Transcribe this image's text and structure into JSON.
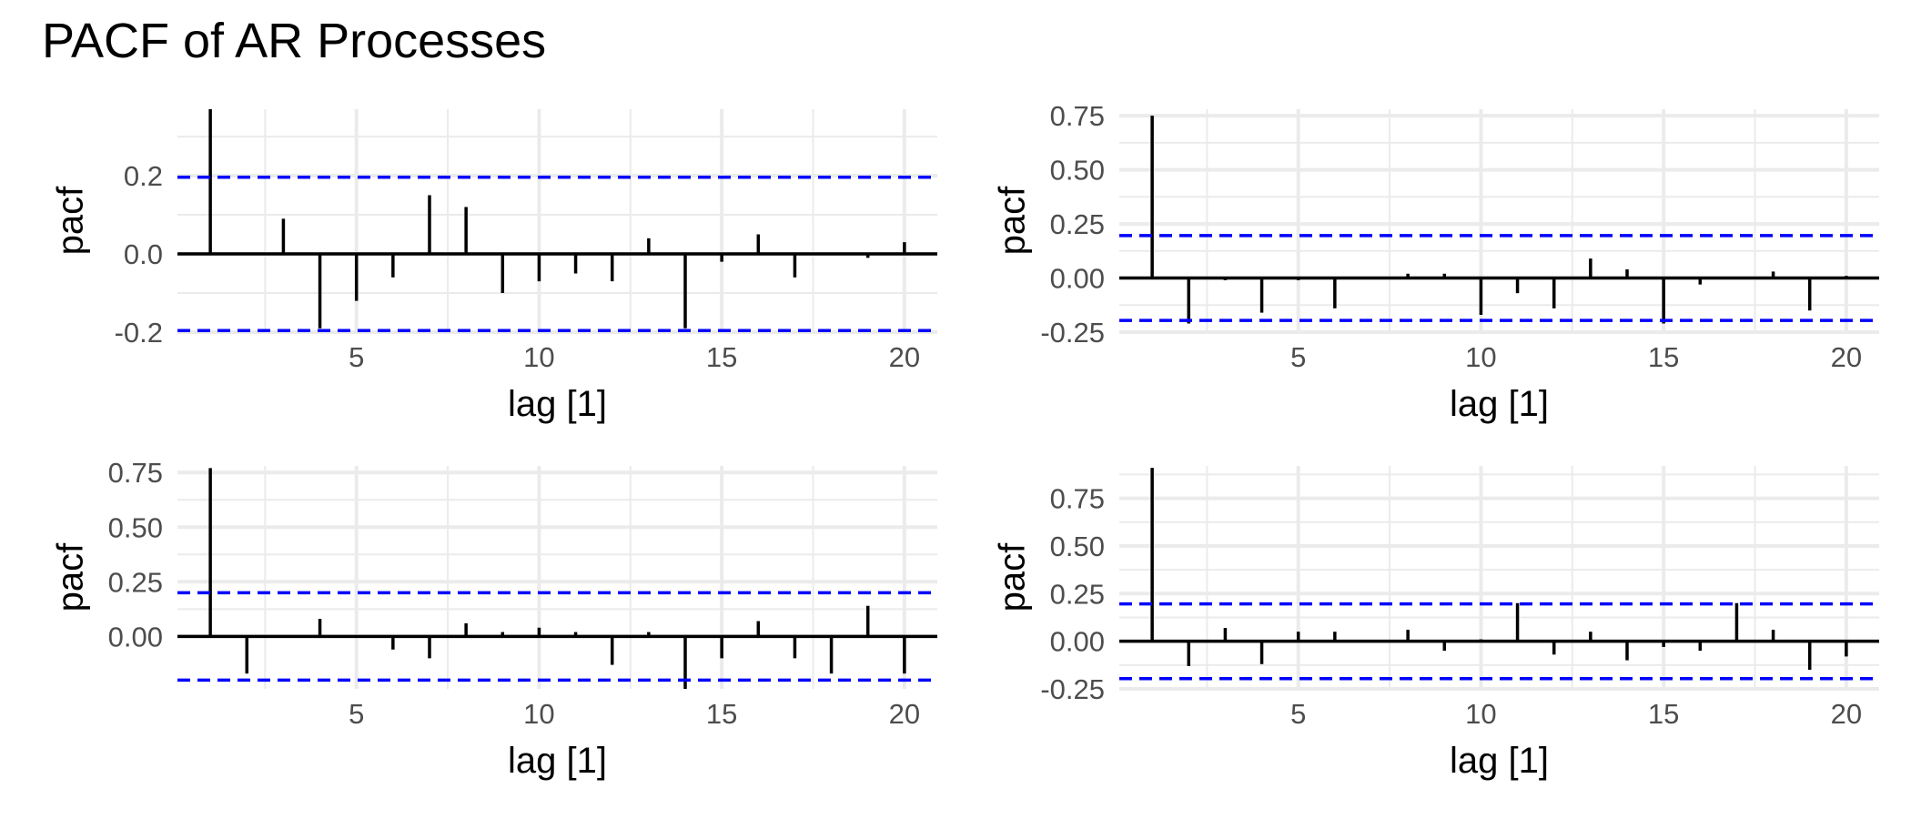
{
  "title": "PACF of AR Processes",
  "colors": {
    "bar": "#000000",
    "ci": "#0000ff",
    "grid": "#ebebeb"
  },
  "chart_data": [
    {
      "type": "bar",
      "panel": "top-left",
      "xlabel": "lag [1]",
      "ylabel": "pacf",
      "xticks": [
        "5",
        "10",
        "15",
        "20"
      ],
      "yticks": [
        "-0.2",
        "0.0",
        "0.2"
      ],
      "ytick_values": [
        -0.2,
        0.0,
        0.2
      ],
      "ylim": [
        -0.2,
        0.37
      ],
      "xlim": [
        0.1,
        20.9
      ],
      "ci": 0.196,
      "lags": [
        1,
        2,
        3,
        4,
        5,
        6,
        7,
        8,
        9,
        10,
        11,
        12,
        13,
        14,
        15,
        16,
        17,
        18,
        19,
        20
      ],
      "values": [
        0.37,
        0.0,
        0.09,
        -0.19,
        -0.12,
        -0.06,
        0.15,
        0.12,
        -0.1,
        -0.07,
        -0.05,
        -0.07,
        0.04,
        -0.19,
        -0.02,
        0.05,
        -0.06,
        0.0,
        -0.01,
        0.03
      ]
    },
    {
      "type": "bar",
      "panel": "top-right",
      "xlabel": "lag [1]",
      "ylabel": "pacf",
      "xticks": [
        "5",
        "10",
        "15",
        "20"
      ],
      "yticks": [
        "-0.25",
        "0.00",
        "0.25",
        "0.50",
        "0.75"
      ],
      "ytick_values": [
        -0.25,
        0.0,
        0.25,
        0.5,
        0.75
      ],
      "ylim": [
        -0.25,
        0.78
      ],
      "xlim": [
        0.1,
        20.9
      ],
      "ci": 0.196,
      "lags": [
        1,
        2,
        3,
        4,
        5,
        6,
        7,
        8,
        9,
        10,
        11,
        12,
        13,
        14,
        15,
        16,
        17,
        18,
        19,
        20
      ],
      "values": [
        0.75,
        -0.21,
        -0.01,
        -0.16,
        -0.01,
        -0.14,
        0.0,
        0.02,
        0.02,
        -0.17,
        -0.07,
        -0.14,
        0.09,
        0.04,
        -0.21,
        -0.03,
        0.0,
        0.03,
        -0.15,
        0.01
      ]
    },
    {
      "type": "bar",
      "panel": "bottom-left",
      "xlabel": "lag [1]",
      "ylabel": "pacf",
      "xticks": [
        "5",
        "10",
        "15",
        "20"
      ],
      "yticks": [
        "0.00",
        "0.25",
        "0.50",
        "0.75"
      ],
      "ytick_values": [
        0.0,
        0.25,
        0.5,
        0.75
      ],
      "ylim": [
        -0.24,
        0.78
      ],
      "xlim": [
        0.1,
        20.9
      ],
      "ci": 0.2,
      "lags": [
        1,
        2,
        3,
        4,
        5,
        6,
        7,
        8,
        9,
        10,
        11,
        12,
        13,
        14,
        15,
        16,
        17,
        18,
        19,
        20
      ],
      "values": [
        0.77,
        -0.17,
        0.0,
        0.08,
        0.0,
        -0.06,
        -0.1,
        0.06,
        0.02,
        0.04,
        0.02,
        -0.13,
        0.02,
        -0.24,
        -0.1,
        0.07,
        -0.1,
        -0.17,
        0.14,
        -0.17
      ]
    },
    {
      "type": "bar",
      "panel": "bottom-right",
      "xlabel": "lag [1]",
      "ylabel": "pacf",
      "xticks": [
        "5",
        "10",
        "15",
        "20"
      ],
      "yticks": [
        "-0.25",
        "0.00",
        "0.25",
        "0.50",
        "0.75"
      ],
      "ytick_values": [
        -0.25,
        0.0,
        0.25,
        0.5,
        0.75
      ],
      "ylim": [
        -0.25,
        0.92
      ],
      "xlim": [
        0.1,
        20.9
      ],
      "ci": 0.196,
      "lags": [
        1,
        2,
        3,
        4,
        5,
        6,
        7,
        8,
        9,
        10,
        11,
        12,
        13,
        14,
        15,
        16,
        17,
        18,
        19,
        20
      ],
      "values": [
        0.91,
        -0.13,
        0.07,
        -0.12,
        0.05,
        0.05,
        0.0,
        0.06,
        -0.05,
        0.01,
        0.2,
        -0.07,
        0.05,
        -0.1,
        -0.03,
        -0.05,
        0.2,
        0.06,
        -0.15,
        -0.08
      ]
    }
  ]
}
